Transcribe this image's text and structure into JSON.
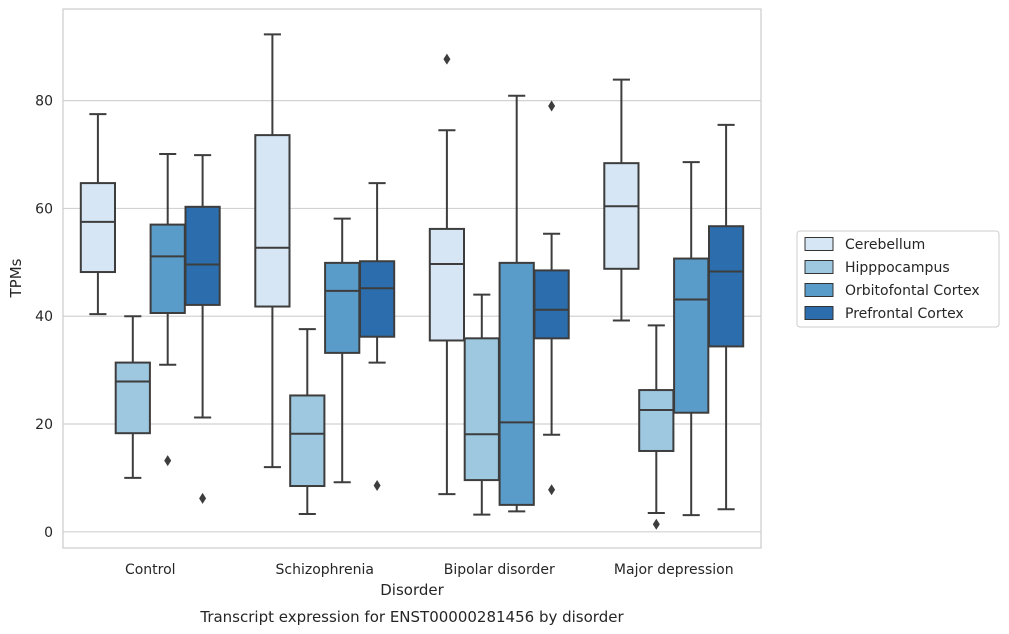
{
  "chart_data": {
    "type": "boxplot",
    "xlabel": "Disorder",
    "ylabel": "TPMs",
    "caption": "Transcript expression for ENST00000281456 by disorder",
    "ylim": [
      -3,
      97
    ],
    "yticks": [
      0,
      20,
      40,
      60,
      80
    ],
    "grid": "horizontal",
    "legend_position": "right",
    "categories": [
      "Control",
      "Schizophrenia",
      "Bipolar disorder",
      "Major depression"
    ],
    "series": [
      {
        "name": "Cerebellum",
        "color": "#d6e6f4",
        "boxes": [
          {
            "whisker_low": 40.4,
            "q1": 48.2,
            "median": 57.5,
            "q3": 64.7,
            "whisker_high": 77.5,
            "outliers": []
          },
          {
            "whisker_low": 12.0,
            "q1": 41.8,
            "median": 52.7,
            "q3": 73.6,
            "whisker_high": 92.3,
            "outliers": []
          },
          {
            "whisker_low": 7.0,
            "q1": 35.5,
            "median": 49.7,
            "q3": 56.2,
            "whisker_high": 74.5,
            "outliers": [
              87.7
            ]
          },
          {
            "whisker_low": 39.2,
            "q1": 48.8,
            "median": 60.4,
            "q3": 68.4,
            "whisker_high": 83.9,
            "outliers": []
          }
        ]
      },
      {
        "name": "Hipppocampus",
        "color": "#9dc8e0",
        "boxes": [
          {
            "whisker_low": 10.0,
            "q1": 18.3,
            "median": 27.9,
            "q3": 31.4,
            "whisker_high": 40.0,
            "outliers": []
          },
          {
            "whisker_low": 3.3,
            "q1": 8.5,
            "median": 18.2,
            "q3": 25.3,
            "whisker_high": 37.6,
            "outliers": []
          },
          {
            "whisker_low": 3.2,
            "q1": 9.6,
            "median": 18.1,
            "q3": 35.9,
            "whisker_high": 44.0,
            "outliers": []
          },
          {
            "whisker_low": 3.5,
            "q1": 15.0,
            "median": 22.6,
            "q3": 26.3,
            "whisker_high": 38.3,
            "outliers": [
              1.4
            ]
          }
        ]
      },
      {
        "name": "Orbitofontal Cortex",
        "color": "#5a9cc9",
        "boxes": [
          {
            "whisker_low": 31.0,
            "q1": 40.6,
            "median": 51.1,
            "q3": 57.0,
            "whisker_high": 70.1,
            "outliers": [
              13.2
            ]
          },
          {
            "whisker_low": 9.2,
            "q1": 33.2,
            "median": 44.7,
            "q3": 49.9,
            "whisker_high": 58.1,
            "outliers": []
          },
          {
            "whisker_low": 3.8,
            "q1": 5.0,
            "median": 20.3,
            "q3": 49.9,
            "whisker_high": 80.9,
            "outliers": []
          },
          {
            "whisker_low": 3.1,
            "q1": 22.1,
            "median": 43.1,
            "q3": 50.7,
            "whisker_high": 68.6,
            "outliers": []
          }
        ]
      },
      {
        "name": "Prefrontal Cortex",
        "color": "#2c6ead",
        "boxes": [
          {
            "whisker_low": 21.2,
            "q1": 42.1,
            "median": 49.6,
            "q3": 60.3,
            "whisker_high": 69.9,
            "outliers": [
              6.2
            ]
          },
          {
            "whisker_low": 31.4,
            "q1": 36.2,
            "median": 45.2,
            "q3": 50.2,
            "whisker_high": 64.7,
            "outliers": [
              8.6
            ]
          },
          {
            "whisker_low": 18.0,
            "q1": 35.9,
            "median": 41.2,
            "q3": 48.5,
            "whisker_high": 55.3,
            "outliers": [
              79.0,
              7.8
            ]
          },
          {
            "whisker_low": 4.2,
            "q1": 34.4,
            "median": 48.3,
            "q3": 56.7,
            "whisker_high": 75.5,
            "outliers": []
          }
        ]
      }
    ]
  }
}
